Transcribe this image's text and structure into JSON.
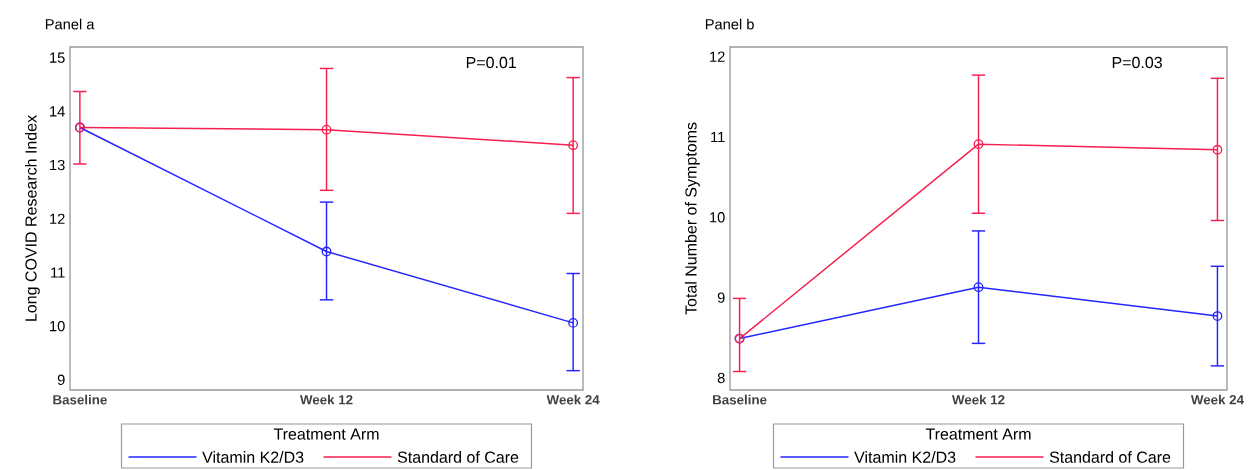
{
  "chart_data": [
    {
      "type": "line",
      "title": "Panel a",
      "ylabel": "Long COVID Research Index",
      "categories": [
        "Baseline",
        "Week 12",
        "Week 24"
      ],
      "ylim": [
        8.81,
        15.2
      ],
      "yticks": [
        9,
        10,
        11,
        12,
        13,
        14,
        15
      ],
      "legend": "bottom",
      "legend_title": "Treatment Arm",
      "marker": "circle",
      "line_style": "solid",
      "annotations": [
        "P=0.01"
      ],
      "series": [
        {
          "name": "Vitamin K2/D3",
          "color": "#2424ff",
          "values": [
            13.7,
            11.39,
            10.06
          ],
          "errors": [
            null,
            [
              10.49,
              12.31
            ],
            [
              9.17,
              10.98
            ]
          ]
        },
        {
          "name": "Standard of Care",
          "color": "#f5204f",
          "values": [
            13.7,
            13.66,
            13.37
          ],
          "errors": [
            [
              13.02,
              14.37
            ],
            [
              12.53,
              14.8
            ],
            [
              12.1,
              14.63
            ]
          ]
        }
      ]
    },
    {
      "type": "line",
      "title": "Panel b",
      "ylabel": "Total Number of Symptoms",
      "categories": [
        "Baseline",
        "Week 12",
        "Week 24"
      ],
      "ylim": [
        7.85,
        12.12
      ],
      "yticks": [
        8,
        9,
        10,
        11,
        12
      ],
      "legend": "bottom",
      "legend_title": "Treatment Arm",
      "marker": "circle",
      "line_style": "solid",
      "annotations": [
        "P=0.03"
      ],
      "series": [
        {
          "name": "Vitamin K2/D3",
          "color": "#2424ff",
          "values": [
            8.49,
            9.13,
            8.77
          ],
          "errors": [
            null,
            [
              8.43,
              9.83
            ],
            [
              8.15,
              9.39
            ]
          ]
        },
        {
          "name": "Standard of Care",
          "color": "#f5204f",
          "values": [
            8.49,
            10.91,
            10.84
          ],
          "errors": [
            [
              8.08,
              8.99
            ],
            [
              10.05,
              11.77
            ],
            [
              9.96,
              11.73
            ]
          ]
        }
      ]
    }
  ]
}
